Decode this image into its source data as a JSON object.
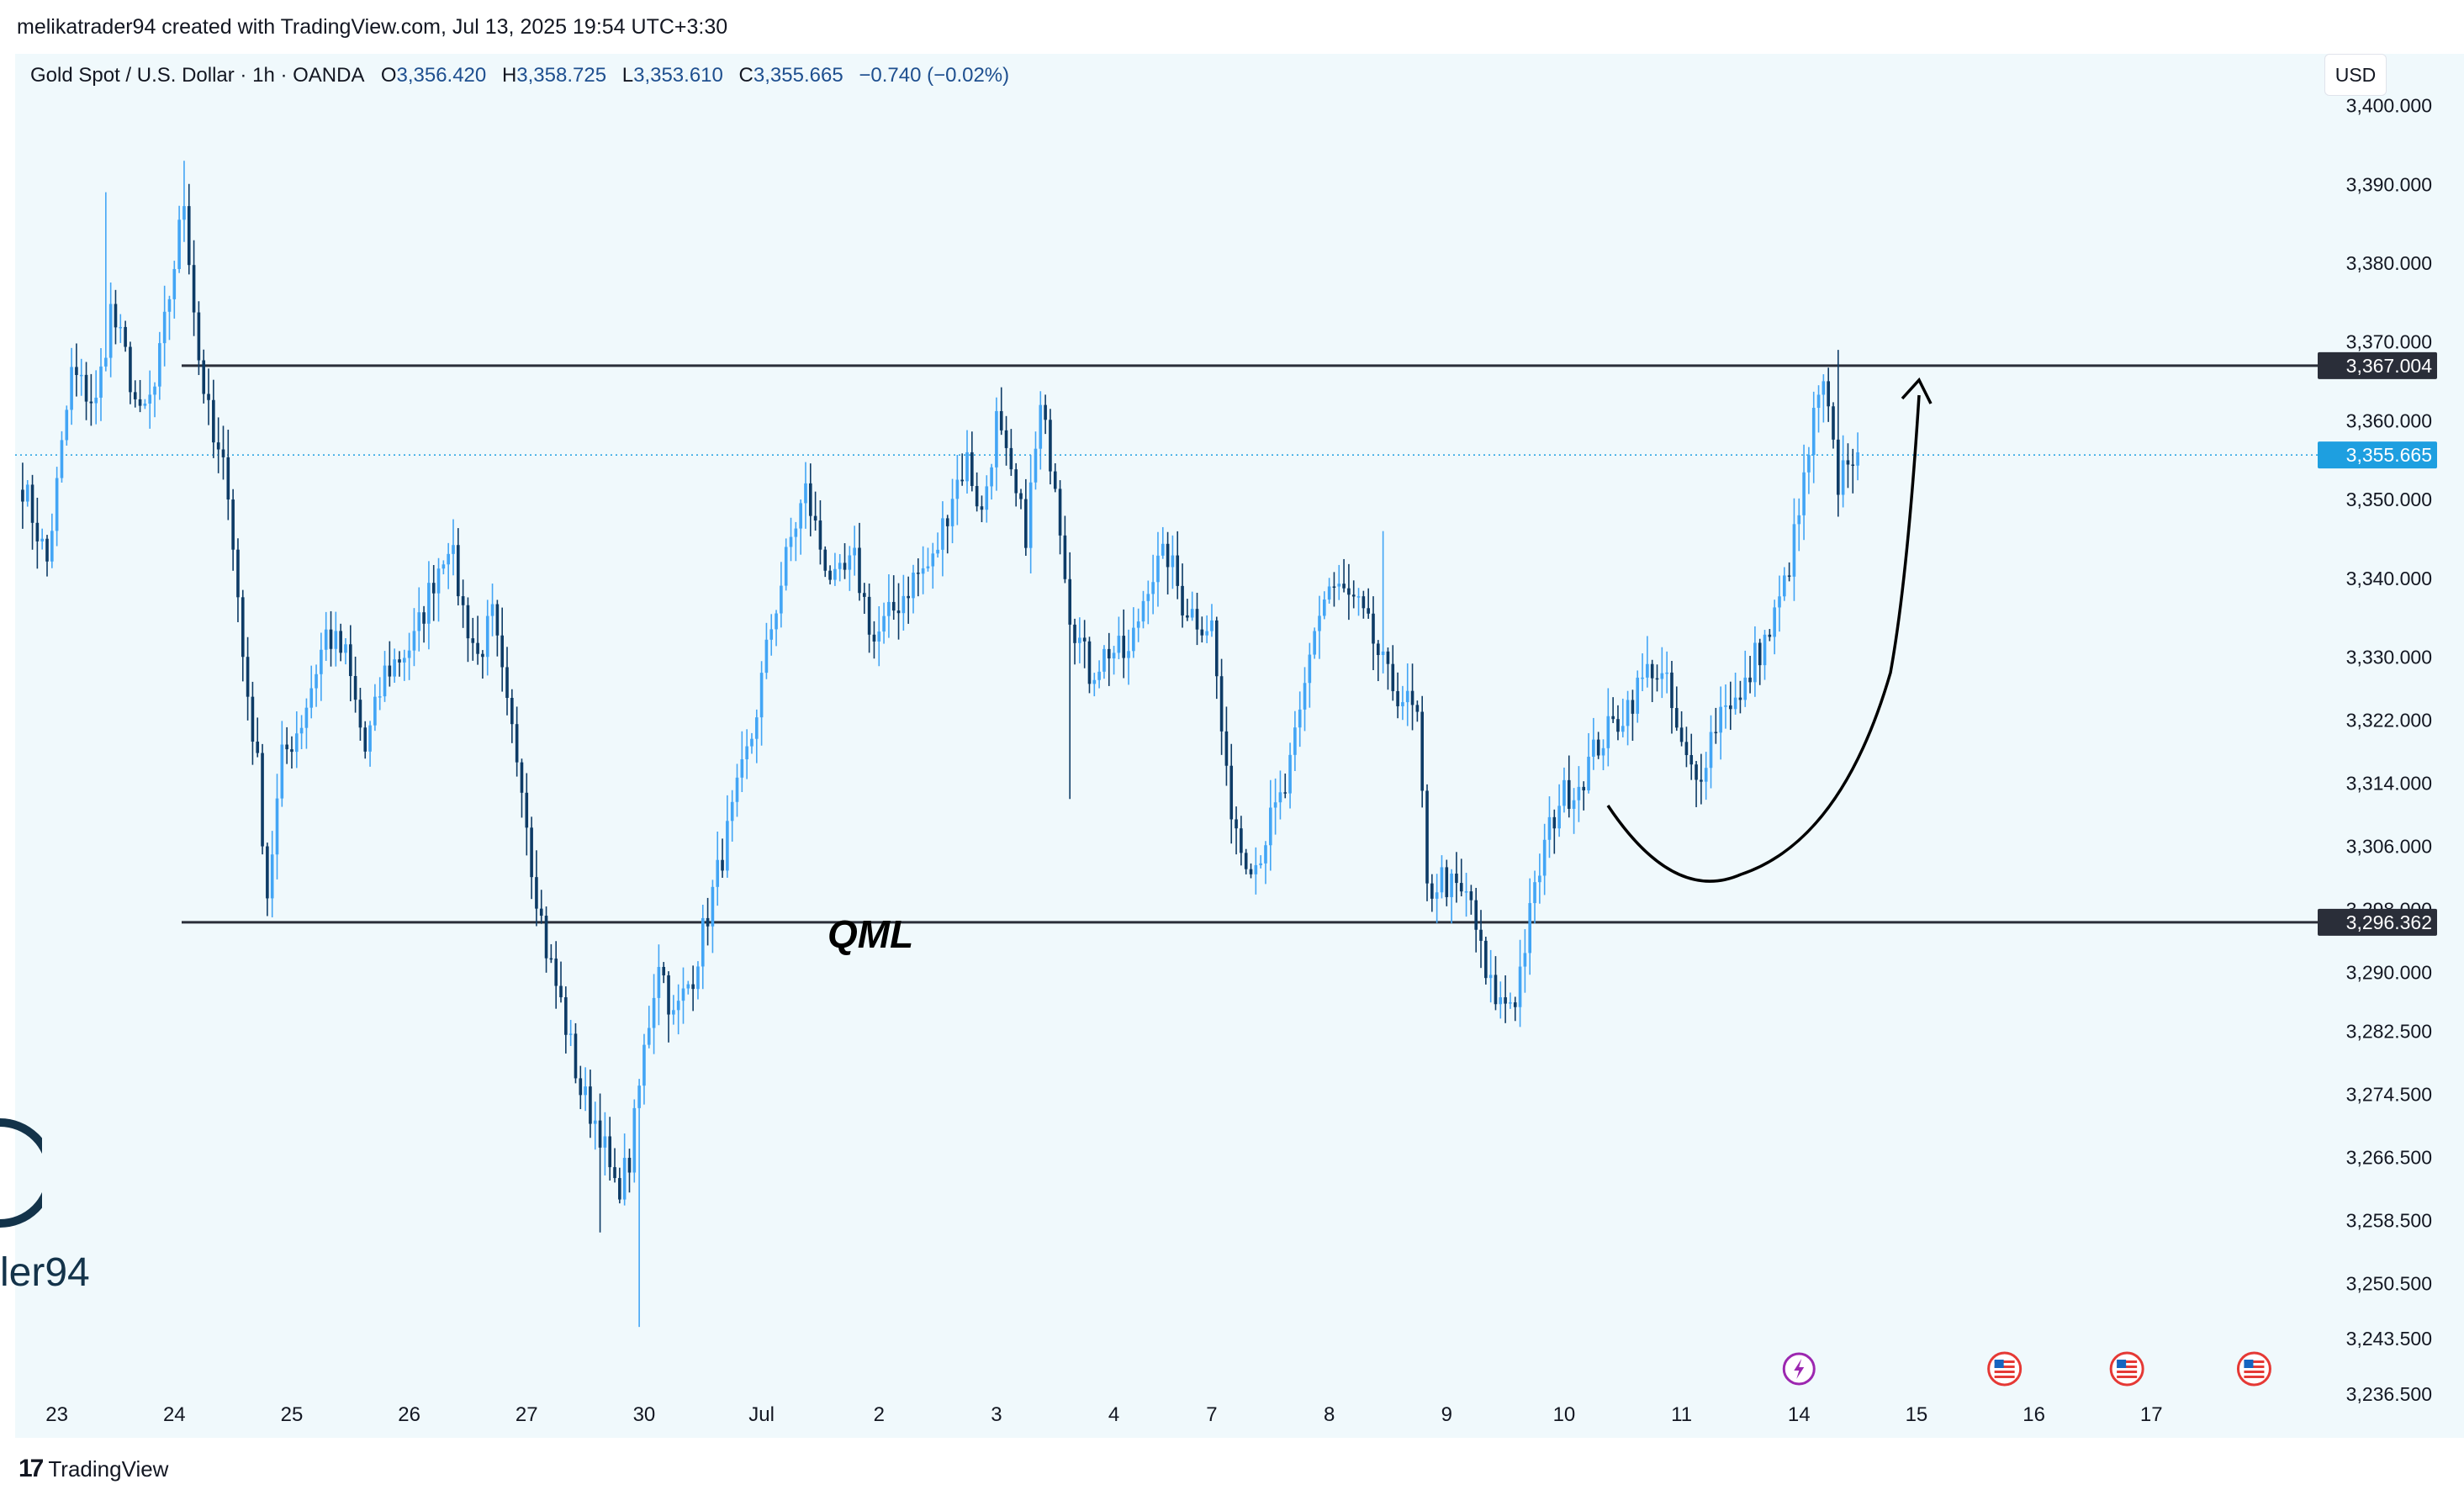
{
  "header": {
    "attribution": "melikatrader94 created with TradingView.com, Jul 13, 2025 19:54 UTC+3:30"
  },
  "legend": {
    "symbol": "Gold Spot / U.S. Dollar · 1h · OANDA",
    "open_label": "O",
    "open": "3,356.420",
    "high_label": "H",
    "high": "3,358.725",
    "low_label": "L",
    "low": "3,353.610",
    "close_label": "C",
    "close": "3,355.665",
    "change": "−0.740 (−0.02%)"
  },
  "currency": "USD",
  "annotation": {
    "pattern_label": "QML"
  },
  "watermark": {
    "text": "ler94"
  },
  "footer": {
    "brand": "TradingView",
    "brand_mark": "17"
  },
  "colors": {
    "bullish": "#42a5f5",
    "bearish": "#0d3b66",
    "background": "#f0f9fc",
    "level_line": "#2a2e39",
    "current_price": "#1e9fe0"
  },
  "chart_data": {
    "type": "candlestick",
    "symbol": "XAUUSD",
    "interval": "1h",
    "ylim": [
      3232,
      3407
    ],
    "y_ticks": [
      "3,400.000",
      "3,390.000",
      "3,380.000",
      "3,370.000",
      "3,360.000",
      "3,350.000",
      "3,340.000",
      "3,330.000",
      "3,322.000",
      "3,314.000",
      "3,306.000",
      "3,298.000",
      "3,290.000",
      "3,282.500",
      "3,274.500",
      "3,266.500",
      "3,258.500",
      "3,250.500",
      "3,243.500",
      "3,236.500"
    ],
    "y_tick_values": [
      3400,
      3390,
      3380,
      3370,
      3360,
      3350,
      3340,
      3330,
      3322,
      3314,
      3306,
      3298,
      3290,
      3282.5,
      3274.5,
      3266.5,
      3258.5,
      3250.5,
      3243.5,
      3236.5
    ],
    "x_labels": [
      "23",
      "24",
      "25",
      "26",
      "27",
      "30",
      "Jul",
      "2",
      "3",
      "4",
      "7",
      "8",
      "9",
      "10",
      "11",
      "14",
      "15",
      "16",
      "17"
    ],
    "x_label_index": [
      7,
      31,
      55,
      79,
      103,
      127,
      151,
      175,
      199,
      223,
      243,
      267,
      291,
      315,
      339,
      363,
      387,
      411,
      435
    ],
    "levels": [
      {
        "name": "resistance",
        "value": "3,367.004",
        "price": 3367.004
      },
      {
        "name": "qml-support",
        "value": "3,296.362",
        "price": 3296.362
      }
    ],
    "current_price": {
      "value": "3,355.665",
      "price": 3355.665
    },
    "event_markers": [
      {
        "type": "lightning",
        "index": 363
      },
      {
        "type": "us-flag",
        "index": 405
      },
      {
        "type": "us-flag",
        "index": 430
      },
      {
        "type": "us-flag",
        "index": 456
      }
    ],
    "pivots": [
      [
        0,
        3352
      ],
      [
        5,
        3342
      ],
      [
        10,
        3366
      ],
      [
        15,
        3362
      ],
      [
        18,
        3374
      ],
      [
        21,
        3368
      ],
      [
        24,
        3360
      ],
      [
        27,
        3364
      ],
      [
        30,
        3376
      ],
      [
        33,
        3388
      ],
      [
        36,
        3368
      ],
      [
        39,
        3357
      ],
      [
        42,
        3352
      ],
      [
        45,
        3330
      ],
      [
        48,
        3316
      ],
      [
        50,
        3300
      ],
      [
        53,
        3317
      ],
      [
        57,
        3322
      ],
      [
        62,
        3333
      ],
      [
        66,
        3330
      ],
      [
        70,
        3318
      ],
      [
        74,
        3328
      ],
      [
        80,
        3332
      ],
      [
        84,
        3340
      ],
      [
        87,
        3345
      ],
      [
        90,
        3336
      ],
      [
        93,
        3330
      ],
      [
        96,
        3335
      ],
      [
        99,
        3323
      ],
      [
        102,
        3315
      ],
      [
        104,
        3304
      ],
      [
        107,
        3293
      ],
      [
        110,
        3286
      ],
      [
        114,
        3275
      ],
      [
        118,
        3270
      ],
      [
        121,
        3262
      ],
      [
        124,
        3266
      ],
      [
        127,
        3280
      ],
      [
        130,
        3292
      ],
      [
        133,
        3284
      ],
      [
        137,
        3290
      ],
      [
        141,
        3300
      ],
      [
        145,
        3310
      ],
      [
        149,
        3320
      ],
      [
        153,
        3334
      ],
      [
        157,
        3345
      ],
      [
        160,
        3351
      ],
      [
        163,
        3344
      ],
      [
        166,
        3339
      ],
      [
        170,
        3342
      ],
      [
        174,
        3332
      ],
      [
        178,
        3336
      ],
      [
        182,
        3340
      ],
      [
        186,
        3342
      ],
      [
        190,
        3351
      ],
      [
        193,
        3355
      ],
      [
        196,
        3348
      ],
      [
        199,
        3360
      ],
      [
        202,
        3352
      ],
      [
        205,
        3346
      ],
      [
        208,
        3361
      ],
      [
        211,
        3353
      ],
      [
        214,
        3336
      ],
      [
        218,
        3328
      ],
      [
        222,
        3331
      ],
      [
        226,
        3330
      ],
      [
        230,
        3340
      ],
      [
        234,
        3343
      ],
      [
        237,
        3337
      ],
      [
        240,
        3335
      ],
      [
        243,
        3334
      ],
      [
        246,
        3314
      ],
      [
        249,
        3306
      ],
      [
        252,
        3304
      ],
      [
        255,
        3309
      ],
      [
        258,
        3313
      ],
      [
        261,
        3322
      ],
      [
        264,
        3334
      ],
      [
        267,
        3339
      ],
      [
        270,
        3338
      ],
      [
        273,
        3336
      ],
      [
        276,
        3332
      ],
      [
        279,
        3327
      ],
      [
        282,
        3325
      ],
      [
        285,
        3322
      ],
      [
        287,
        3300
      ],
      [
        290,
        3302
      ],
      [
        293,
        3300
      ],
      [
        296,
        3299
      ],
      [
        299,
        3289
      ],
      [
        302,
        3286
      ],
      [
        305,
        3287
      ],
      [
        308,
        3297
      ],
      [
        311,
        3306
      ],
      [
        314,
        3312
      ],
      [
        318,
        3314
      ],
      [
        322,
        3319
      ],
      [
        326,
        3322
      ],
      [
        329,
        3325
      ],
      [
        333,
        3329
      ],
      [
        336,
        3326
      ],
      [
        339,
        3318
      ],
      [
        342,
        3314
      ],
      [
        345,
        3320
      ],
      [
        348,
        3325
      ],
      [
        351,
        3324
      ],
      [
        354,
        3330
      ],
      [
        357,
        3333
      ],
      [
        360,
        3339
      ],
      [
        363,
        3348
      ],
      [
        366,
        3360
      ],
      [
        368,
        3364
      ],
      [
        371,
        3352
      ],
      [
        373,
        3356
      ],
      [
        375,
        3356
      ]
    ]
  }
}
